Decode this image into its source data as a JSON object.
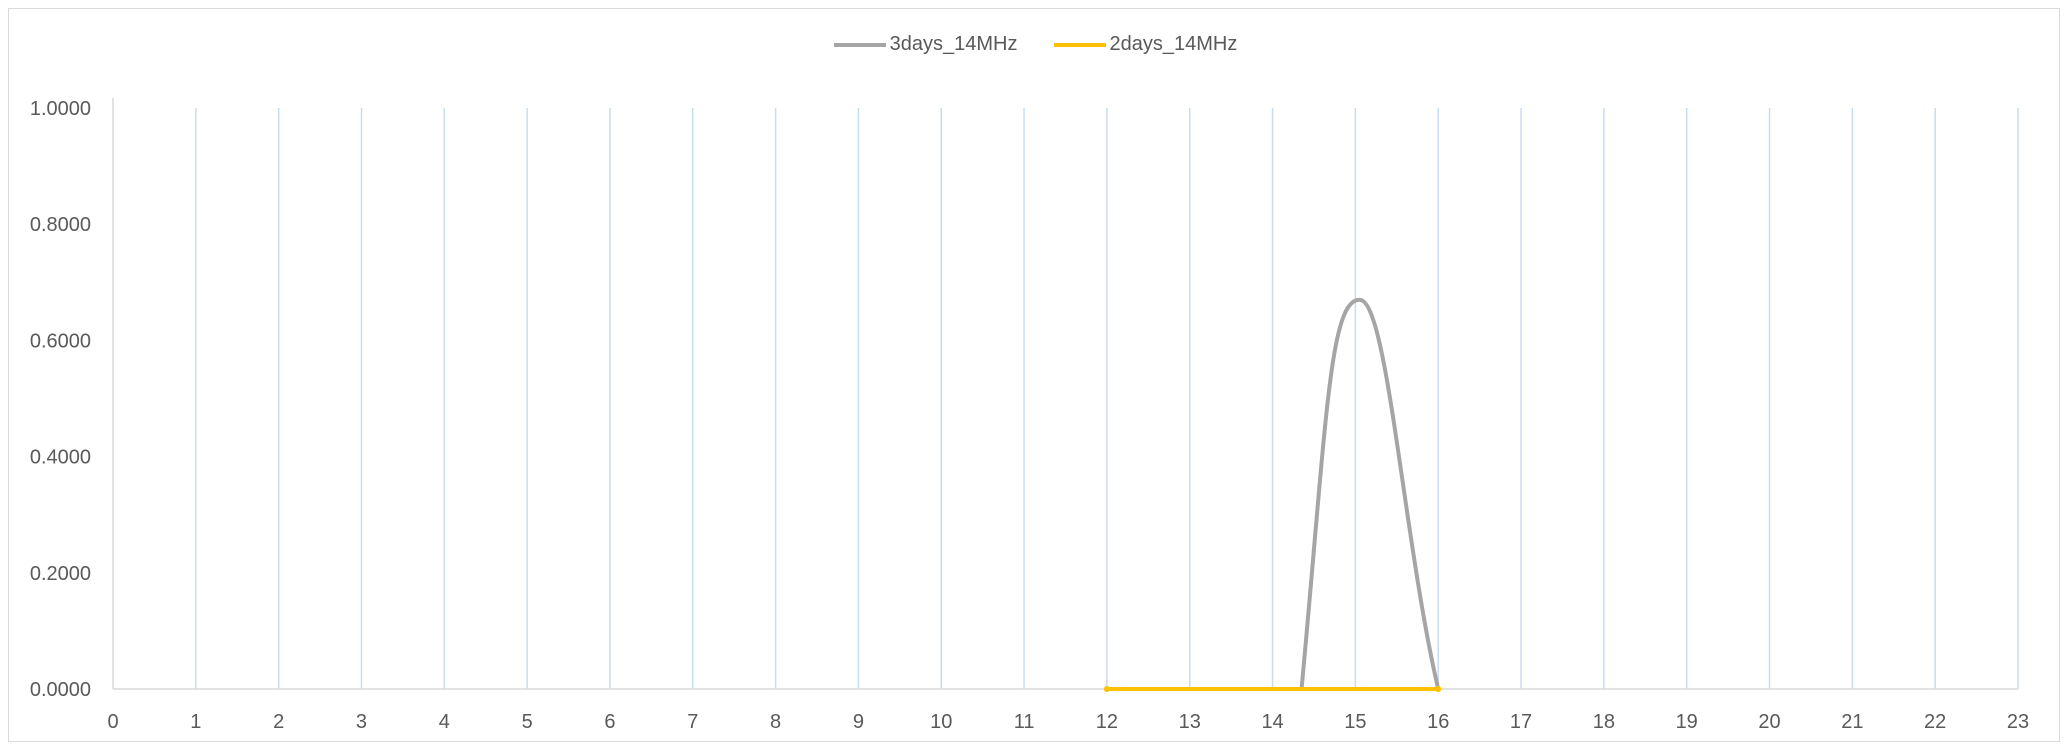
{
  "chart_data": {
    "type": "line",
    "x": [
      0,
      1,
      2,
      3,
      4,
      5,
      6,
      7,
      8,
      9,
      10,
      11,
      12,
      13,
      14,
      15,
      16,
      17,
      18,
      19,
      20,
      21,
      22,
      23
    ],
    "xlim": [
      0,
      23
    ],
    "ylim": [
      0,
      1
    ],
    "y_ticks": [
      "0.0000",
      "0.2000",
      "0.4000",
      "0.6000",
      "0.8000",
      "1.0000"
    ],
    "x_ticks": [
      "0",
      "1",
      "2",
      "3",
      "4",
      "5",
      "6",
      "7",
      "8",
      "9",
      "10",
      "11",
      "12",
      "13",
      "14",
      "15",
      "16",
      "17",
      "18",
      "19",
      "20",
      "21",
      "22",
      "23"
    ],
    "grid": "vertical",
    "legend_position": "top",
    "series": [
      {
        "name": "3days_14MHz",
        "color": "#a5a5a5",
        "points": [
          [
            14.35,
            0.0
          ],
          [
            15.05,
            0.67
          ],
          [
            16.0,
            0.0
          ]
        ]
      },
      {
        "name": "2days_14MHz",
        "color": "#ffc000",
        "points": [
          [
            12,
            0.0
          ],
          [
            16,
            0.0
          ]
        ]
      }
    ]
  }
}
